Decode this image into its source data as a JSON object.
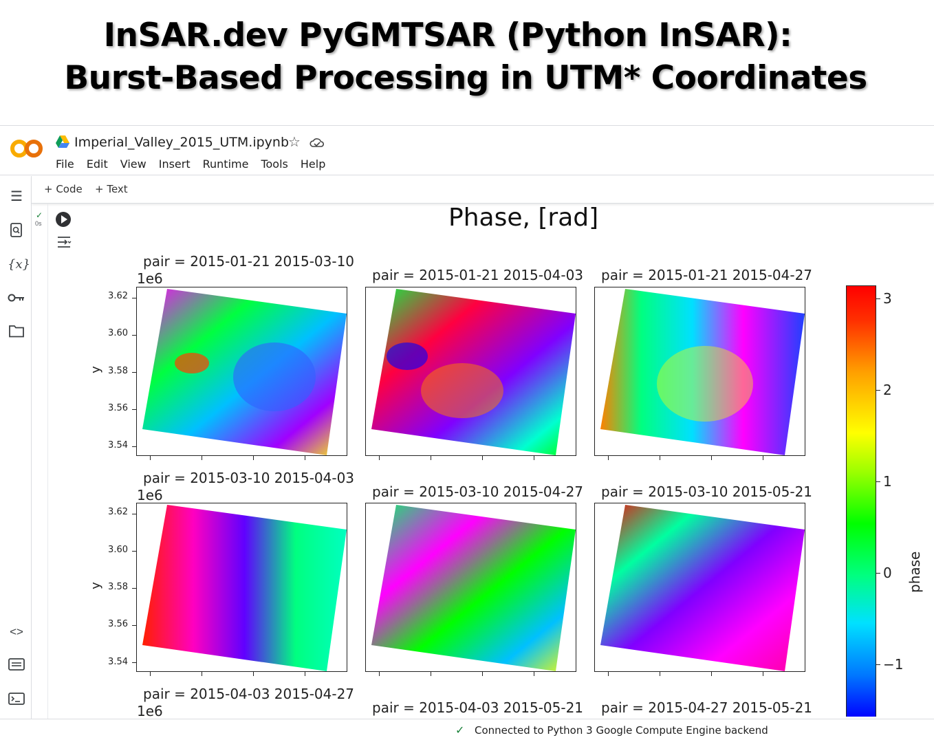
{
  "banner": {
    "line1": "InSAR.dev PyGMTSAR (Python InSAR):",
    "line2": "Burst-Based Processing in UTM* Coordinates"
  },
  "header": {
    "notebook_title": "Imperial_Valley_2015_UTM.ipynb",
    "logo_text": "CO",
    "menu": [
      "File",
      "Edit",
      "View",
      "Insert",
      "Runtime",
      "Tools",
      "Help"
    ]
  },
  "toolbar": {
    "add_code": "+ Code",
    "add_text": "+ Text"
  },
  "sidebar": {
    "icons": [
      "toc-icon",
      "search-icon",
      "variables-icon",
      "key-icon",
      "folder-icon",
      "code-snippets-icon",
      "command-palette-icon",
      "terminal-icon"
    ]
  },
  "cell": {
    "exec_time": "0s"
  },
  "figure": {
    "suptitle": "Phase, [rad]",
    "sci_offset": "1e6",
    "ylabel": "y",
    "yticks": [
      "3.62",
      "3.60",
      "3.58",
      "3.56",
      "3.54"
    ],
    "panels": [
      {
        "title": "pair = 2015-01-21 2015-03-10"
      },
      {
        "title": "pair = 2015-01-21 2015-04-03"
      },
      {
        "title": "pair = 2015-01-21 2015-04-27"
      },
      {
        "title": "pair = 2015-03-10 2015-04-03"
      },
      {
        "title": "pair = 2015-03-10 2015-04-27"
      },
      {
        "title": "pair = 2015-03-10 2015-05-21"
      },
      {
        "title": "pair = 2015-04-03 2015-04-27"
      },
      {
        "title": "pair = 2015-04-03 2015-05-21"
      },
      {
        "title": "pair = 2015-04-27 2015-05-21"
      }
    ],
    "colorbar": {
      "label": "phase",
      "ticks": [
        "3",
        "2",
        "1",
        "0",
        "−1"
      ],
      "range": [
        -3.14,
        3.14
      ]
    }
  },
  "status": {
    "text": "Connected to Python 3 Google Compute Engine backend"
  }
}
